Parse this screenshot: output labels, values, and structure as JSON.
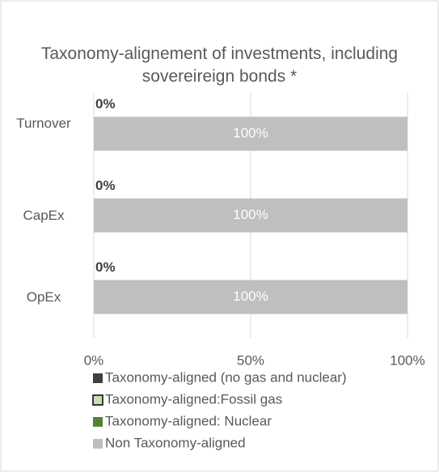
{
  "chart_data": {
    "type": "stacked-bar-horizontal",
    "title": "Taxonomy-alignement of investments, including sovereireign bonds *",
    "categories": [
      "Turnover",
      "CapEx",
      "OpEx"
    ],
    "series": [
      {
        "name": "Taxonomy-aligned (no gas and nuclear)",
        "color": "#404040",
        "values": [
          0,
          0,
          0
        ],
        "value_labels": [
          "0%",
          "0%",
          "0%"
        ]
      },
      {
        "name": "Taxonomy-aligned:Fossil gas",
        "color": "#c6e0b4",
        "values": [
          0,
          0,
          0
        ]
      },
      {
        "name": "Taxonomy-aligned: Nuclear",
        "color": "#548235",
        "values": [
          0,
          0,
          0
        ]
      },
      {
        "name": "Non Taxonomy-aligned",
        "color": "#bfbfbf",
        "values": [
          100,
          100,
          100
        ],
        "value_labels": [
          "100%",
          "100%",
          "100%"
        ]
      }
    ],
    "xlim": [
      0,
      100
    ],
    "xticks": [
      {
        "value": 0,
        "label": "0%"
      },
      {
        "value": 50,
        "label": "50%"
      },
      {
        "value": 100,
        "label": "100%"
      }
    ],
    "grid": true,
    "legend": "bottom"
  }
}
